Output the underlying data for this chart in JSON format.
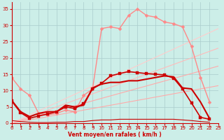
{
  "background_color": "#cceee8",
  "grid_color": "#aacccc",
  "xlabel": "Vent moyen/en rafales ( km/h )",
  "xlim": [
    0,
    23
  ],
  "ylim": [
    0,
    37
  ],
  "yticks": [
    0,
    5,
    10,
    15,
    20,
    25,
    30,
    35
  ],
  "xticks": [
    0,
    1,
    2,
    3,
    4,
    5,
    6,
    7,
    8,
    9,
    10,
    11,
    12,
    13,
    14,
    15,
    16,
    17,
    18,
    19,
    20,
    21,
    22,
    23
  ],
  "line_diag1": {
    "x": [
      0,
      23
    ],
    "y": [
      0,
      11.5
    ],
    "color": "#ffaaaa",
    "lw": 0.8,
    "alpha": 1.0
  },
  "line_diag2": {
    "x": [
      0,
      23
    ],
    "y": [
      0,
      17.5
    ],
    "color": "#ffaaaa",
    "lw": 0.8,
    "alpha": 1.0
  },
  "line_diag3": {
    "x": [
      0,
      23
    ],
    "y": [
      0,
      23.0
    ],
    "color": "#ffbbbb",
    "lw": 0.8,
    "alpha": 1.0
  },
  "line_diag4": {
    "x": [
      0,
      23
    ],
    "y": [
      0,
      29.0
    ],
    "color": "#ffcccc",
    "lw": 0.8,
    "alpha": 1.0
  },
  "line_rafales": {
    "x": [
      0,
      1,
      2,
      3,
      4,
      5,
      6,
      7,
      8,
      9,
      10,
      11,
      12,
      13,
      14,
      15,
      16,
      17,
      18,
      19,
      20,
      21,
      22
    ],
    "y": [
      14.0,
      10.5,
      8.5,
      3.0,
      2.5,
      3.0,
      4.0,
      3.5,
      8.5,
      10.5,
      29.0,
      29.5,
      29.0,
      33.0,
      35.0,
      33.0,
      32.5,
      31.0,
      30.5,
      29.5,
      23.5,
      14.0,
      6.5
    ],
    "color": "#ff8888",
    "lw": 1.0,
    "marker": "D",
    "ms": 2.5,
    "alpha": 1.0
  },
  "line_moyen1": {
    "x": [
      0,
      1,
      2,
      3,
      4,
      5,
      6,
      7,
      8,
      9,
      10,
      11,
      12,
      13,
      14,
      15,
      16,
      17,
      18,
      19,
      20,
      21,
      22
    ],
    "y": [
      6.8,
      3.2,
      1.5,
      2.2,
      2.8,
      3.5,
      5.0,
      4.5,
      6.0,
      10.5,
      12.2,
      14.5,
      15.2,
      15.8,
      15.5,
      15.2,
      15.0,
      14.8,
      13.8,
      10.5,
      6.2,
      1.8,
      1.2
    ],
    "color": "#cc0000",
    "lw": 1.2,
    "marker": "s",
    "ms": 2.5,
    "alpha": 1.0
  },
  "line_moyen2": {
    "x": [
      0,
      1,
      2,
      3,
      4,
      5,
      6,
      7,
      8,
      9,
      10,
      11,
      12,
      13,
      14,
      15,
      16,
      17,
      18,
      19,
      20,
      21,
      22
    ],
    "y": [
      7.0,
      3.5,
      2.0,
      3.0,
      3.5,
      3.5,
      5.5,
      5.0,
      5.5,
      10.8,
      12.0,
      12.5,
      12.5,
      13.0,
      13.0,
      13.5,
      14.0,
      14.5,
      14.2,
      10.8,
      10.5,
      6.5,
      1.5
    ],
    "color": "#cc0000",
    "lw": 1.5,
    "marker": null,
    "ms": 0,
    "alpha": 1.0
  },
  "line_bottom1": {
    "x": [
      0,
      1,
      2,
      3,
      4,
      5,
      6,
      7,
      8,
      9,
      10,
      11,
      12,
      13,
      14,
      15,
      16,
      17,
      18,
      19,
      20,
      21,
      22
    ],
    "y": [
      0.8,
      0.5,
      0.3,
      0.2,
      0.2,
      0.3,
      0.3,
      0.5,
      0.5,
      0.8,
      1.0,
      1.0,
      1.2,
      1.2,
      1.2,
      1.2,
      1.2,
      1.2,
      1.2,
      1.0,
      0.8,
      0.5,
      0.3
    ],
    "color": "#cc0000",
    "lw": 0.8,
    "marker": null,
    "ms": 0,
    "alpha": 1.0
  },
  "arrows_x": [
    0,
    1,
    2,
    3,
    4,
    5,
    6,
    7,
    8,
    9,
    10,
    11,
    12,
    13,
    14,
    15,
    16,
    17,
    18,
    19,
    20,
    21,
    22,
    23
  ],
  "arrow_color": "#cc2222"
}
